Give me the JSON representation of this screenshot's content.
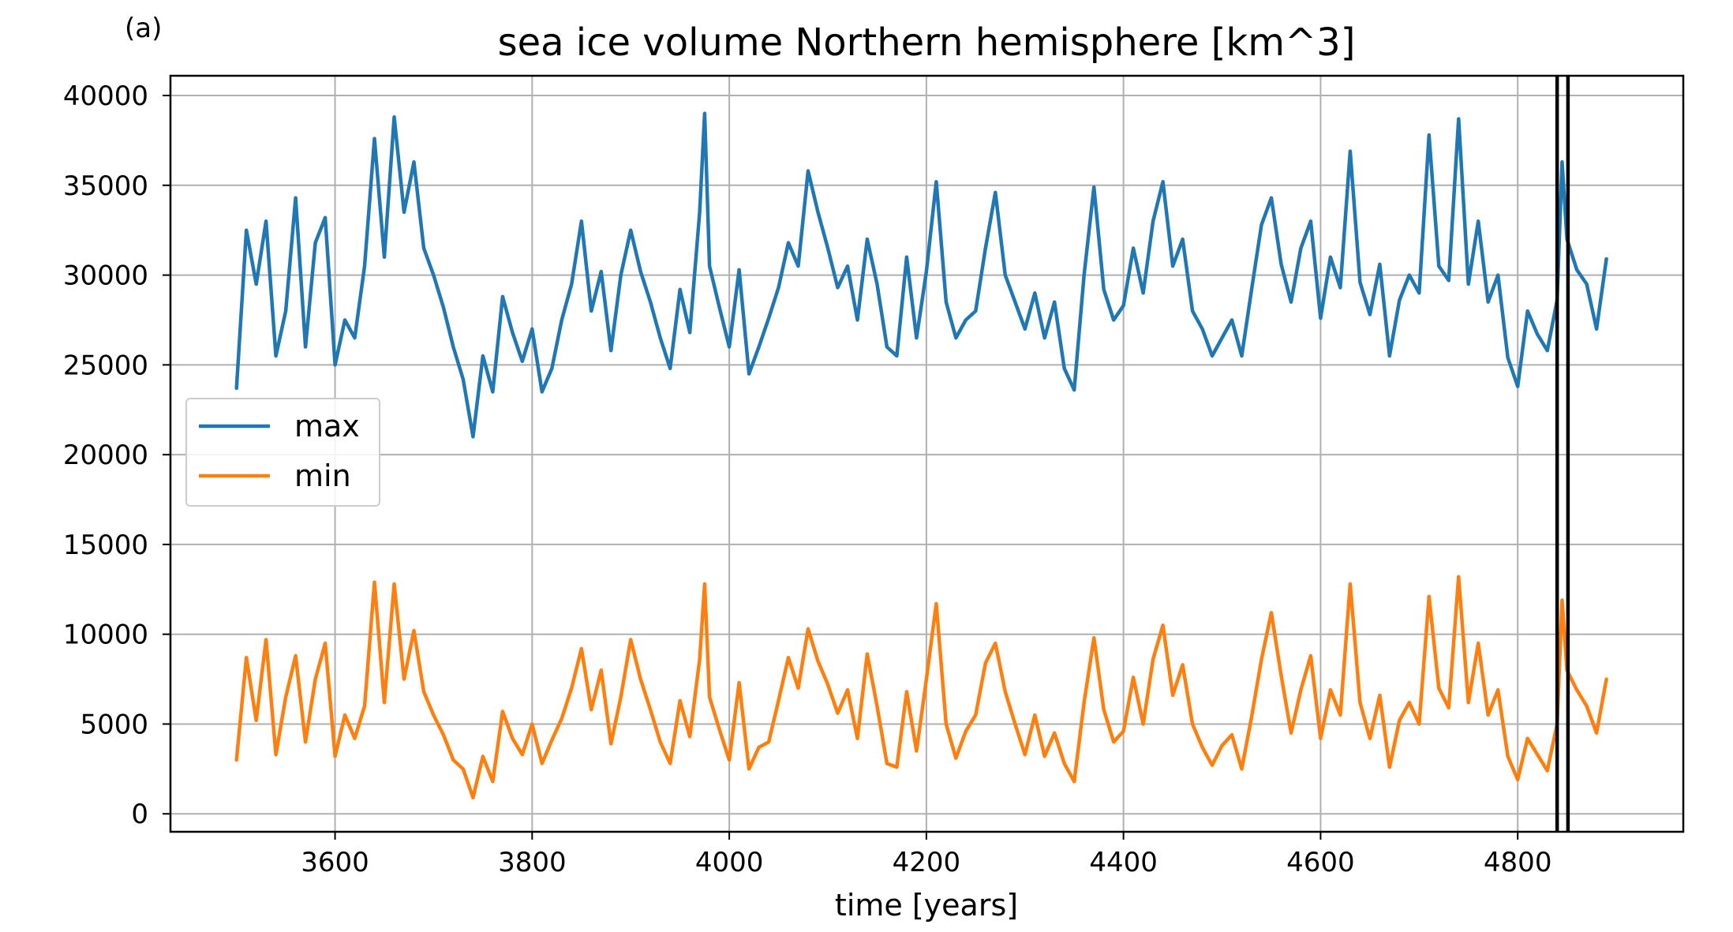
{
  "panel_label": "(a)",
  "chart_data": {
    "type": "line",
    "title": "sea ice volume Northern hemisphere [km^3]",
    "xlabel": "time [years]",
    "ylabel": "",
    "xlim": [
      3433,
      4968
    ],
    "ylim": [
      -1000,
      41100
    ],
    "xticks": [
      3600,
      3800,
      4000,
      4200,
      4400,
      4600,
      4800
    ],
    "yticks": [
      0,
      5000,
      10000,
      15000,
      20000,
      25000,
      30000,
      35000,
      40000
    ],
    "grid": true,
    "legend_position": "center-left",
    "vertical_lines": [
      4840,
      4851
    ],
    "vertical_line_color": "#000000",
    "series": [
      {
        "name": "max",
        "color": "#1f77b4",
        "x": [
          3500,
          3510,
          3520,
          3530,
          3540,
          3550,
          3560,
          3570,
          3580,
          3590,
          3600,
          3610,
          3620,
          3630,
          3640,
          3650,
          3660,
          3670,
          3680,
          3690,
          3700,
          3710,
          3720,
          3730,
          3740,
          3750,
          3760,
          3770,
          3780,
          3790,
          3800,
          3810,
          3820,
          3830,
          3840,
          3850,
          3860,
          3870,
          3880,
          3890,
          3900,
          3910,
          3920,
          3930,
          3940,
          3950,
          3960,
          3970,
          3975,
          3980,
          3990,
          4000,
          4010,
          4020,
          4030,
          4040,
          4050,
          4060,
          4070,
          4080,
          4090,
          4100,
          4110,
          4120,
          4130,
          4140,
          4150,
          4160,
          4170,
          4180,
          4190,
          4200,
          4210,
          4220,
          4230,
          4240,
          4250,
          4260,
          4270,
          4280,
          4290,
          4300,
          4310,
          4320,
          4330,
          4340,
          4350,
          4360,
          4370,
          4380,
          4390,
          4400,
          4410,
          4420,
          4430,
          4440,
          4450,
          4460,
          4470,
          4480,
          4490,
          4500,
          4510,
          4520,
          4530,
          4540,
          4550,
          4560,
          4570,
          4580,
          4590,
          4600,
          4610,
          4620,
          4630,
          4640,
          4650,
          4660,
          4670,
          4680,
          4690,
          4700,
          4710,
          4720,
          4730,
          4740,
          4750,
          4760,
          4770,
          4780,
          4790,
          4800,
          4810,
          4820,
          4830,
          4840,
          4845,
          4850,
          4860,
          4870,
          4880,
          4890
        ],
        "values": [
          23700,
          32500,
          29500,
          33000,
          25500,
          28000,
          34300,
          26000,
          31800,
          33200,
          25000,
          27500,
          26500,
          30500,
          37600,
          31000,
          38800,
          33500,
          36300,
          31500,
          30000,
          28200,
          26000,
          24200,
          21000,
          25500,
          23500,
          28800,
          26800,
          25200,
          27000,
          23500,
          24800,
          27500,
          29500,
          33000,
          28000,
          30200,
          25800,
          30000,
          32500,
          30200,
          28500,
          26500,
          24800,
          29200,
          26800,
          33500,
          39000,
          30500,
          28200,
          26000,
          30300,
          24500,
          26000,
          27600,
          29300,
          31800,
          30500,
          35800,
          33500,
          31500,
          29300,
          30500,
          27500,
          32000,
          29500,
          26000,
          25500,
          31000,
          26500,
          30200,
          35200,
          28500,
          26500,
          27500,
          28000,
          31500,
          34600,
          30000,
          28500,
          27000,
          29000,
          26500,
          28500,
          24800,
          23600,
          30000,
          34900,
          29200,
          27500,
          28300,
          31500,
          29000,
          33000,
          35200,
          30500,
          32000,
          28000,
          27000,
          25500,
          26500,
          27500,
          25500,
          29200,
          32800,
          34300,
          30600,
          28500,
          31500,
          33000,
          27600,
          31000,
          29300,
          36900,
          29600,
          27800,
          30600,
          25500,
          28600,
          30000,
          29000,
          37800,
          30500,
          29700,
          38700,
          29500,
          33000,
          28500,
          30000,
          25400,
          23800,
          28000,
          26700,
          25800,
          28600,
          36300,
          32000,
          30300,
          29500,
          27000,
          30900
        ]
      },
      {
        "name": "min",
        "color": "#ff7f0e",
        "x": [
          3500,
          3510,
          3520,
          3530,
          3540,
          3550,
          3560,
          3570,
          3580,
          3590,
          3600,
          3610,
          3620,
          3630,
          3640,
          3650,
          3660,
          3670,
          3680,
          3690,
          3700,
          3710,
          3720,
          3730,
          3740,
          3750,
          3760,
          3770,
          3780,
          3790,
          3800,
          3810,
          3820,
          3830,
          3840,
          3850,
          3860,
          3870,
          3880,
          3890,
          3900,
          3910,
          3920,
          3930,
          3940,
          3950,
          3960,
          3970,
          3975,
          3980,
          3990,
          4000,
          4010,
          4020,
          4030,
          4040,
          4050,
          4060,
          4070,
          4080,
          4090,
          4100,
          4110,
          4120,
          4130,
          4140,
          4150,
          4160,
          4170,
          4180,
          4190,
          4200,
          4210,
          4220,
          4230,
          4240,
          4250,
          4260,
          4270,
          4280,
          4290,
          4300,
          4310,
          4320,
          4330,
          4340,
          4350,
          4360,
          4370,
          4380,
          4390,
          4400,
          4410,
          4420,
          4430,
          4440,
          4450,
          4460,
          4470,
          4480,
          4490,
          4500,
          4510,
          4520,
          4530,
          4540,
          4550,
          4560,
          4570,
          4580,
          4590,
          4600,
          4610,
          4620,
          4630,
          4640,
          4650,
          4660,
          4670,
          4680,
          4690,
          4700,
          4710,
          4720,
          4730,
          4740,
          4750,
          4760,
          4770,
          4780,
          4790,
          4800,
          4810,
          4820,
          4830,
          4840,
          4845,
          4850,
          4860,
          4870,
          4880,
          4890
        ],
        "values": [
          3000,
          8700,
          5200,
          9700,
          3300,
          6500,
          8800,
          4000,
          7500,
          9500,
          3200,
          5500,
          4200,
          6000,
          12900,
          6200,
          12800,
          7500,
          10200,
          6800,
          5500,
          4400,
          3000,
          2500,
          900,
          3200,
          1800,
          5700,
          4200,
          3300,
          5000,
          2800,
          4100,
          5300,
          7000,
          9200,
          5800,
          8000,
          3900,
          6500,
          9700,
          7500,
          5800,
          4000,
          2800,
          6300,
          4300,
          8600,
          12800,
          6500,
          4700,
          3000,
          7300,
          2500,
          3700,
          4000,
          6300,
          8700,
          7000,
          10300,
          8500,
          7200,
          5600,
          6900,
          4200,
          8900,
          6000,
          2800,
          2600,
          6800,
          3500,
          7500,
          11700,
          5000,
          3100,
          4600,
          5500,
          8400,
          9500,
          6800,
          5000,
          3300,
          5500,
          3200,
          4500,
          2800,
          1800,
          6200,
          9800,
          5800,
          4000,
          4600,
          7600,
          5000,
          8600,
          10500,
          6600,
          8300,
          5000,
          3700,
          2700,
          3800,
          4400,
          2500,
          5400,
          8600,
          11200,
          7700,
          4500,
          6900,
          8800,
          4200,
          6900,
          5500,
          12800,
          6200,
          4200,
          6600,
          2600,
          5200,
          6200,
          5000,
          12100,
          7000,
          5900,
          13200,
          6200,
          9500,
          5500,
          6900,
          3200,
          1900,
          4200,
          3300,
          2400,
          5000,
          11900,
          8000,
          6900,
          6000,
          4500,
          7500
        ]
      }
    ]
  }
}
